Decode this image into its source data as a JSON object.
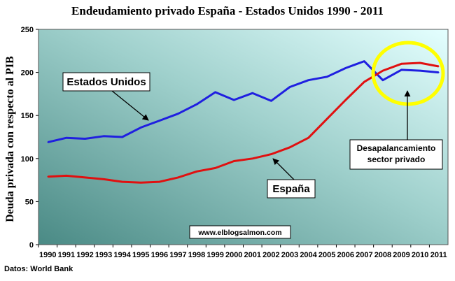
{
  "chart_data": {
    "type": "line",
    "title": "Endeudamiento privado España - Estados Unidos 1990 - 2011",
    "ylabel": "Deuda privada con respecto al PIB",
    "xlabel": "",
    "ylim": [
      0,
      250
    ],
    "yticks": [
      "0",
      "50",
      "100",
      "150",
      "200",
      "250"
    ],
    "x": [
      "1990",
      "1991",
      "1992",
      "1993",
      "1994",
      "1995",
      "1996",
      "1997",
      "1998",
      "1999",
      "2000",
      "2001",
      "2002",
      "2003",
      "2004",
      "2005",
      "2006",
      "2007",
      "2008",
      "2009",
      "2010",
      "2011"
    ],
    "series": [
      {
        "name": "Estados Unidos",
        "color": "#1f1fe0",
        "values": [
          119,
          124,
          123,
          126,
          125,
          136,
          144,
          152,
          163,
          177,
          168,
          176,
          167,
          183,
          191,
          195,
          205,
          213,
          191,
          203,
          202,
          200
        ]
      },
      {
        "name": "España",
        "color": "#e01010",
        "values": [
          79,
          80,
          78,
          76,
          73,
          72,
          73,
          78,
          85,
          89,
          97,
          100,
          105,
          113,
          124,
          146,
          168,
          189,
          202,
          210,
          211,
          207
        ]
      }
    ],
    "annotations": {
      "us_label": "Estados Unidos",
      "es_label": "España",
      "delev_line1": "Desapalancamiento",
      "delev_line2": "sector privado",
      "watermark": "www.elblogsalmon.com"
    },
    "grid": false,
    "source": "Datos: World Bank",
    "colors": {
      "background_from": "#4f8f8a",
      "background_to": "#e0ffff",
      "highlight": "#ffff00"
    }
  }
}
